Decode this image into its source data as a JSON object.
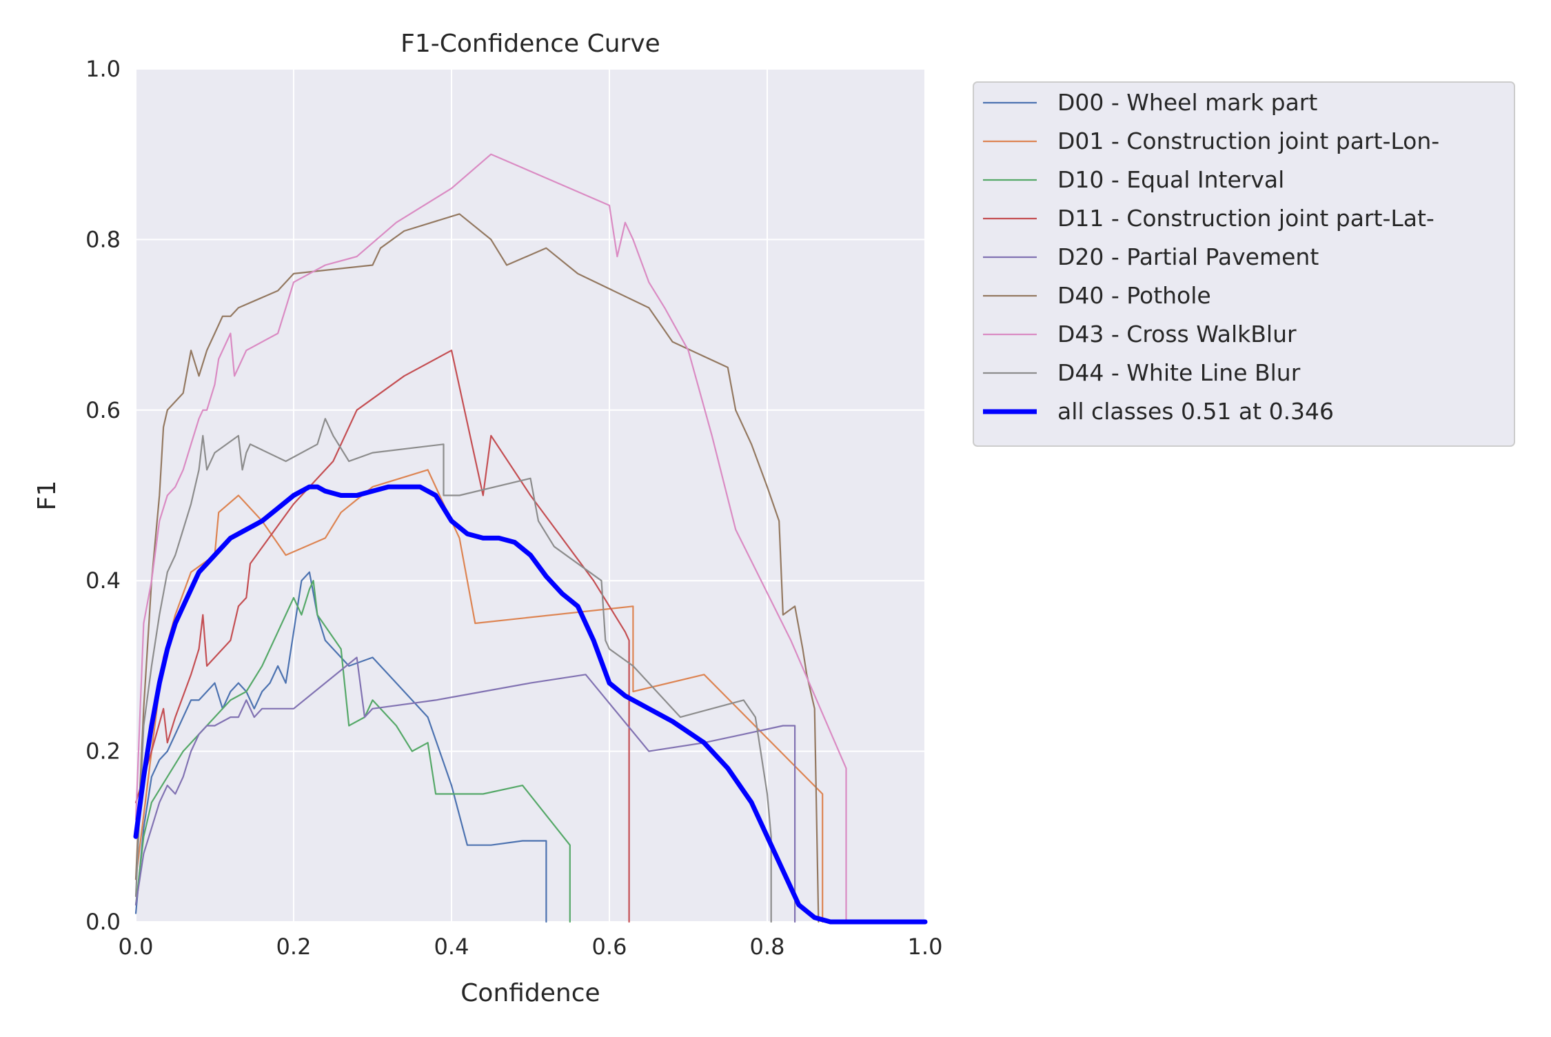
{
  "chart_data": {
    "type": "line",
    "title": "F1-Confidence Curve",
    "xlabel": "Confidence",
    "ylabel": "F1",
    "xlim": [
      0,
      1
    ],
    "ylim": [
      0,
      1
    ],
    "xticks": [
      "0.0",
      "0.2",
      "0.4",
      "0.6",
      "0.8",
      "1.0"
    ],
    "yticks": [
      "0.0",
      "0.2",
      "0.4",
      "0.6",
      "0.8",
      "1.0"
    ],
    "grid": true,
    "legend_position": "outside upper right",
    "series": [
      {
        "name": "D00 - Wheel mark part",
        "color": "#4c72b0",
        "width": 1,
        "x": [
          0.0,
          0.01,
          0.02,
          0.03,
          0.04,
          0.05,
          0.06,
          0.07,
          0.08,
          0.09,
          0.1,
          0.11,
          0.12,
          0.13,
          0.14,
          0.15,
          0.16,
          0.17,
          0.18,
          0.19,
          0.2,
          0.21,
          0.22,
          0.23,
          0.24,
          0.27,
          0.3,
          0.33,
          0.37,
          0.4,
          0.42,
          0.45,
          0.49,
          0.52,
          0.52
        ],
        "y": [
          0.01,
          0.11,
          0.17,
          0.19,
          0.2,
          0.22,
          0.24,
          0.26,
          0.26,
          0.27,
          0.28,
          0.25,
          0.27,
          0.28,
          0.27,
          0.25,
          0.27,
          0.28,
          0.3,
          0.28,
          0.34,
          0.4,
          0.41,
          0.36,
          0.33,
          0.3,
          0.31,
          0.28,
          0.24,
          0.16,
          0.09,
          0.09,
          0.095,
          0.095,
          0.0
        ]
      },
      {
        "name": "D01 - Construction joint part-Lon-",
        "color": "#dd8452",
        "width": 1,
        "x": [
          0.0,
          0.02,
          0.035,
          0.05,
          0.07,
          0.1,
          0.105,
          0.13,
          0.16,
          0.19,
          0.24,
          0.26,
          0.3,
          0.37,
          0.41,
          0.43,
          0.63,
          0.63,
          0.72,
          0.87,
          0.87
        ],
        "y": [
          0.05,
          0.2,
          0.31,
          0.36,
          0.41,
          0.43,
          0.48,
          0.5,
          0.47,
          0.43,
          0.45,
          0.48,
          0.51,
          0.53,
          0.45,
          0.35,
          0.37,
          0.27,
          0.29,
          0.15,
          0.0
        ],
        "breaks": []
      },
      {
        "name": "D10 - Equal Interval",
        "color": "#55a868",
        "width": 1,
        "x": [
          0.0,
          0.01,
          0.02,
          0.04,
          0.06,
          0.08,
          0.1,
          0.12,
          0.14,
          0.16,
          0.18,
          0.2,
          0.21,
          0.22,
          0.225,
          0.23,
          0.26,
          0.27,
          0.29,
          0.3,
          0.33,
          0.35,
          0.37,
          0.38,
          0.44,
          0.49,
          0.55,
          0.55
        ],
        "y": [
          0.02,
          0.1,
          0.14,
          0.17,
          0.2,
          0.22,
          0.24,
          0.26,
          0.27,
          0.3,
          0.34,
          0.38,
          0.36,
          0.39,
          0.4,
          0.36,
          0.32,
          0.23,
          0.24,
          0.26,
          0.23,
          0.2,
          0.21,
          0.15,
          0.15,
          0.16,
          0.09,
          0.0
        ]
      },
      {
        "name": "D11 - Construction joint part-Lat-",
        "color": "#c44e52",
        "width": 1,
        "x": [
          0.0,
          0.02,
          0.035,
          0.04,
          0.05,
          0.07,
          0.08,
          0.085,
          0.09,
          0.1,
          0.12,
          0.13,
          0.14,
          0.145,
          0.2,
          0.25,
          0.28,
          0.34,
          0.4,
          0.44,
          0.45,
          0.5,
          0.58,
          0.62,
          0.625,
          0.625
        ],
        "y": [
          0.14,
          0.2,
          0.25,
          0.21,
          0.24,
          0.29,
          0.32,
          0.36,
          0.3,
          0.31,
          0.33,
          0.37,
          0.38,
          0.42,
          0.49,
          0.54,
          0.6,
          0.64,
          0.67,
          0.5,
          0.57,
          0.5,
          0.4,
          0.34,
          0.33,
          0.0
        ]
      },
      {
        "name": "D20 - Partial Pavement",
        "color": "#8172b2",
        "width": 1,
        "x": [
          0.0,
          0.01,
          0.02,
          0.03,
          0.04,
          0.05,
          0.06,
          0.07,
          0.08,
          0.09,
          0.1,
          0.12,
          0.13,
          0.14,
          0.15,
          0.16,
          0.18,
          0.2,
          0.24,
          0.28,
          0.29,
          0.3,
          0.38,
          0.44,
          0.5,
          0.57,
          0.65,
          0.72,
          0.77,
          0.82,
          0.835,
          0.835
        ],
        "y": [
          0.02,
          0.08,
          0.11,
          0.14,
          0.16,
          0.15,
          0.17,
          0.2,
          0.22,
          0.23,
          0.23,
          0.24,
          0.24,
          0.26,
          0.24,
          0.25,
          0.25,
          0.25,
          0.28,
          0.31,
          0.24,
          0.25,
          0.26,
          0.27,
          0.28,
          0.29,
          0.2,
          0.21,
          0.22,
          0.23,
          0.23,
          0.0
        ]
      },
      {
        "name": "D40 - Pothole",
        "color": "#937860",
        "width": 1,
        "x": [
          0.0,
          0.01,
          0.02,
          0.03,
          0.035,
          0.04,
          0.05,
          0.06,
          0.07,
          0.08,
          0.09,
          0.1,
          0.11,
          0.12,
          0.13,
          0.18,
          0.2,
          0.3,
          0.31,
          0.34,
          0.41,
          0.45,
          0.47,
          0.52,
          0.56,
          0.65,
          0.68,
          0.75,
          0.76,
          0.78,
          0.8,
          0.815,
          0.82,
          0.835,
          0.845,
          0.85,
          0.86,
          0.865
        ],
        "y": [
          0.05,
          0.25,
          0.4,
          0.5,
          0.58,
          0.6,
          0.61,
          0.62,
          0.67,
          0.64,
          0.67,
          0.69,
          0.71,
          0.71,
          0.72,
          0.74,
          0.76,
          0.77,
          0.79,
          0.81,
          0.83,
          0.8,
          0.77,
          0.79,
          0.76,
          0.72,
          0.68,
          0.65,
          0.6,
          0.56,
          0.51,
          0.47,
          0.36,
          0.37,
          0.32,
          0.29,
          0.25,
          0.0
        ]
      },
      {
        "name": "D43 - Cross WalkBlur",
        "color": "#da8bc3",
        "width": 1,
        "x": [
          0.0,
          0.01,
          0.02,
          0.03,
          0.04,
          0.05,
          0.06,
          0.07,
          0.08,
          0.085,
          0.09,
          0.1,
          0.105,
          0.12,
          0.125,
          0.13,
          0.14,
          0.18,
          0.19,
          0.2,
          0.24,
          0.28,
          0.33,
          0.4,
          0.45,
          0.6,
          0.61,
          0.62,
          0.63,
          0.65,
          0.67,
          0.7,
          0.73,
          0.76,
          0.83,
          0.9,
          0.9
        ],
        "y": [
          0.12,
          0.35,
          0.4,
          0.47,
          0.5,
          0.51,
          0.53,
          0.56,
          0.59,
          0.6,
          0.6,
          0.63,
          0.66,
          0.69,
          0.64,
          0.65,
          0.67,
          0.69,
          0.72,
          0.75,
          0.77,
          0.78,
          0.82,
          0.86,
          0.9,
          0.84,
          0.78,
          0.82,
          0.8,
          0.75,
          0.72,
          0.67,
          0.57,
          0.46,
          0.33,
          0.18,
          0.0
        ]
      },
      {
        "name": "D44 - White Line Blur",
        "color": "#8c8c8c",
        "width": 1,
        "x": [
          0.0,
          0.01,
          0.02,
          0.03,
          0.04,
          0.05,
          0.06,
          0.07,
          0.08,
          0.085,
          0.09,
          0.1,
          0.13,
          0.135,
          0.14,
          0.145,
          0.19,
          0.23,
          0.24,
          0.25,
          0.27,
          0.3,
          0.39,
          0.39,
          0.41,
          0.5,
          0.51,
          0.53,
          0.59,
          0.595,
          0.6,
          0.63,
          0.69,
          0.77,
          0.785,
          0.8,
          0.805,
          0.805
        ],
        "y": [
          0.03,
          0.23,
          0.3,
          0.36,
          0.41,
          0.43,
          0.46,
          0.49,
          0.53,
          0.57,
          0.53,
          0.55,
          0.57,
          0.53,
          0.55,
          0.56,
          0.54,
          0.56,
          0.59,
          0.57,
          0.54,
          0.55,
          0.56,
          0.5,
          0.5,
          0.52,
          0.47,
          0.44,
          0.4,
          0.33,
          0.32,
          0.3,
          0.24,
          0.26,
          0.24,
          0.15,
          0.1,
          0.0
        ]
      },
      {
        "name": "all classes 0.51 at 0.346",
        "color": "#0000ff",
        "width": 3,
        "x": [
          0.0,
          0.01,
          0.02,
          0.03,
          0.04,
          0.05,
          0.06,
          0.07,
          0.08,
          0.09,
          0.1,
          0.12,
          0.14,
          0.16,
          0.18,
          0.2,
          0.22,
          0.23,
          0.24,
          0.26,
          0.28,
          0.3,
          0.32,
          0.346,
          0.36,
          0.38,
          0.4,
          0.42,
          0.44,
          0.46,
          0.48,
          0.5,
          0.52,
          0.54,
          0.56,
          0.58,
          0.6,
          0.62,
          0.65,
          0.68,
          0.72,
          0.75,
          0.78,
          0.8,
          0.82,
          0.84,
          0.86,
          0.88,
          0.9,
          0.92,
          0.96,
          1.0
        ],
        "y": [
          0.1,
          0.17,
          0.23,
          0.28,
          0.32,
          0.35,
          0.37,
          0.39,
          0.41,
          0.42,
          0.43,
          0.45,
          0.46,
          0.47,
          0.485,
          0.5,
          0.51,
          0.51,
          0.505,
          0.5,
          0.5,
          0.505,
          0.51,
          0.51,
          0.51,
          0.5,
          0.47,
          0.455,
          0.45,
          0.45,
          0.445,
          0.43,
          0.405,
          0.385,
          0.37,
          0.33,
          0.28,
          0.265,
          0.25,
          0.235,
          0.21,
          0.18,
          0.14,
          0.1,
          0.06,
          0.02,
          0.005,
          0.0,
          0.0,
          0.0,
          0.0,
          0.0
        ]
      }
    ]
  }
}
